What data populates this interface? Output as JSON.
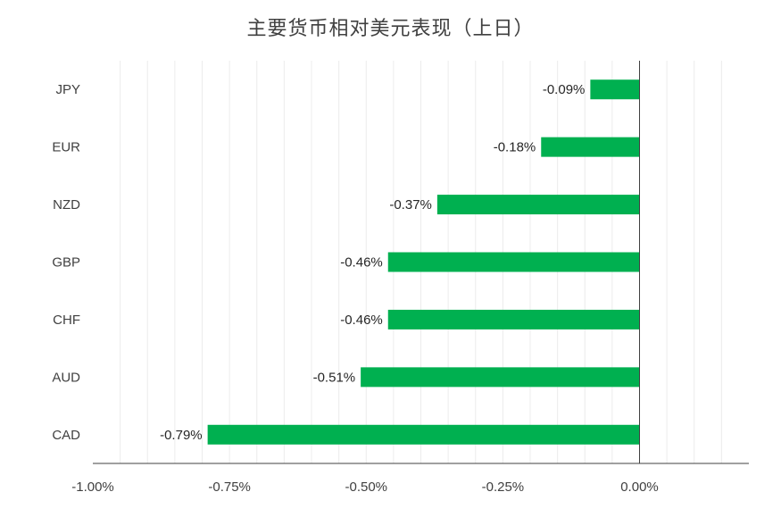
{
  "chart_data": {
    "type": "bar",
    "orientation": "horizontal",
    "title": "主要货币相对美元表现（上日）",
    "categories": [
      "JPY",
      "EUR",
      "NZD",
      "GBP",
      "CHF",
      "AUD",
      "CAD"
    ],
    "values": [
      -0.09,
      -0.18,
      -0.37,
      -0.46,
      -0.46,
      -0.51,
      -0.79
    ],
    "data_labels": [
      "-0.09%",
      "-0.18%",
      "-0.37%",
      "-0.46%",
      "-0.46%",
      "-0.51%",
      "-0.79%"
    ],
    "xlim": [
      -1.0,
      0.2
    ],
    "xticks": [
      -1.0,
      -0.75,
      -0.5,
      -0.25,
      0.0
    ],
    "xtick_labels": [
      "-1.00%",
      "-0.75%",
      "-0.50%",
      "-0.25%",
      "0.00%"
    ],
    "xlabel": "",
    "ylabel": "",
    "grid": "vertical minor gridlines",
    "legend": "none",
    "bar_color": "#00b050",
    "grid_color": "#ececec",
    "axis_color": "#404040"
  }
}
